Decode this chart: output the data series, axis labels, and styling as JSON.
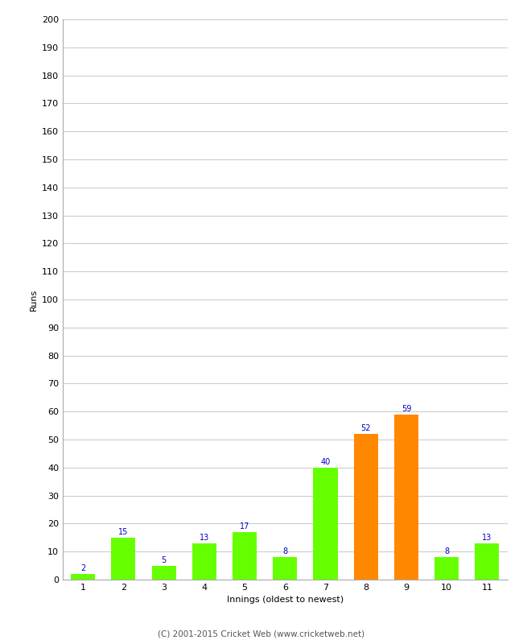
{
  "categories": [
    1,
    2,
    3,
    4,
    5,
    6,
    7,
    8,
    9,
    10,
    11
  ],
  "values": [
    2,
    15,
    5,
    13,
    17,
    8,
    40,
    52,
    59,
    8,
    13
  ],
  "bar_colors": [
    "#66ff00",
    "#66ff00",
    "#66ff00",
    "#66ff00",
    "#66ff00",
    "#66ff00",
    "#66ff00",
    "#ff8800",
    "#ff8800",
    "#66ff00",
    "#66ff00"
  ],
  "xlabel": "Innings (oldest to newest)",
  "ylabel": "Runs",
  "ylim": [
    0,
    200
  ],
  "yticks": [
    0,
    10,
    20,
    30,
    40,
    50,
    60,
    70,
    80,
    90,
    100,
    110,
    120,
    130,
    140,
    150,
    160,
    170,
    180,
    190,
    200
  ],
  "value_label_color": "#0000cc",
  "value_label_fontsize": 7,
  "axis_label_fontsize": 8,
  "tick_fontsize": 8,
  "footer": "(C) 2001-2015 Cricket Web (www.cricketweb.net)",
  "footer_fontsize": 7.5,
  "background_color": "#ffffff",
  "grid_color": "#cccccc",
  "border_color": "#aaaaaa"
}
